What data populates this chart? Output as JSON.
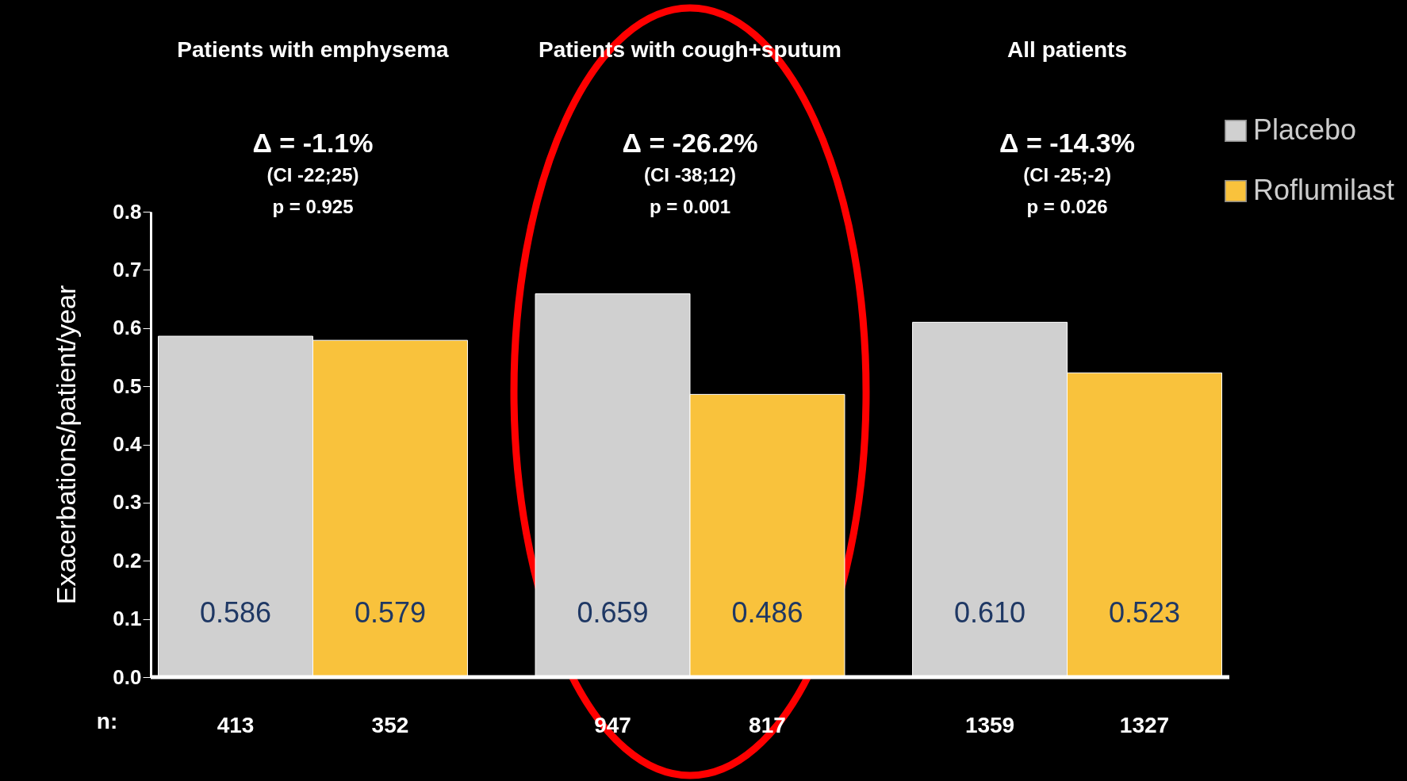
{
  "chart_data": {
    "type": "bar",
    "categories": [
      "Patients with emphysema",
      "Patients with cough+sputum",
      "All patients"
    ],
    "series": [
      {
        "name": "Placebo",
        "color": "#d0d0d0",
        "values": [
          0.586,
          0.659,
          0.61
        ]
      },
      {
        "name": "Roflumilast",
        "color": "#f9c23c",
        "values": [
          0.579,
          0.486,
          0.523
        ]
      }
    ],
    "ylabel": "Exacerbations/patient/year",
    "ylim": [
      0,
      0.8
    ],
    "yticks": [
      {
        "value": 0,
        "label": "0.0"
      },
      {
        "value": 0.1,
        "label": "0.1"
      },
      {
        "value": 0.2,
        "label": "0.2"
      },
      {
        "value": 0.3,
        "label": "0.3"
      },
      {
        "value": 0.4,
        "label": "0.4"
      },
      {
        "value": 0.5,
        "label": "0.5"
      },
      {
        "value": 0.6,
        "label": "0.6"
      },
      {
        "value": 0.7,
        "label": "0.7"
      },
      {
        "value": 0.8,
        "label": "0.8"
      }
    ],
    "value_labels": [
      [
        "0.586",
        "0.659",
        "0.610"
      ],
      [
        "0.579",
        "0.486",
        "0.523"
      ]
    ],
    "annotations": [
      "Δ = -1.1%",
      "(CI -22;25)",
      "p = 0.925",
      "Δ = -26.2%",
      "(CI -38;12)",
      "p = 0.001",
      "Δ = -14.3%",
      "(CI -25;-2)",
      "p = 0.026",
      "n:",
      "413",
      "352",
      "947",
      "817",
      "1359",
      "1327"
    ],
    "grid": false,
    "legend": "top right"
  }
}
